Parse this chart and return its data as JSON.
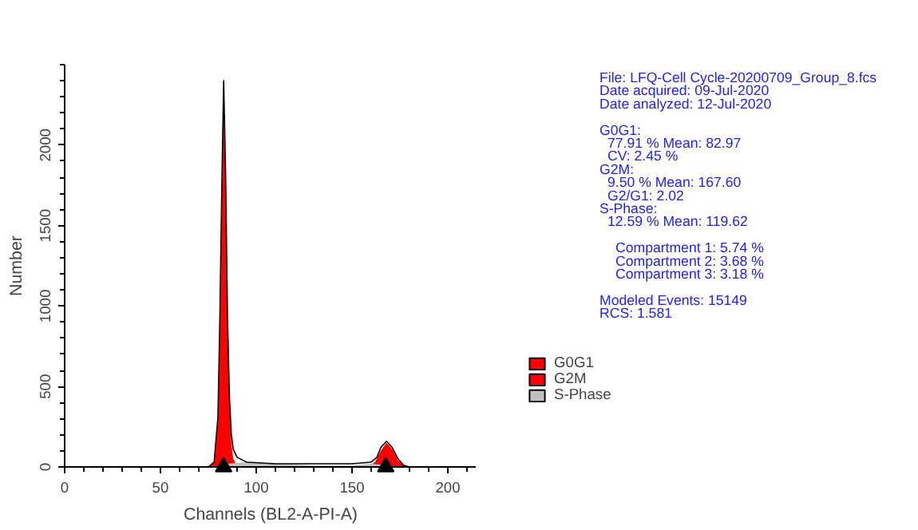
{
  "chart_data": {
    "type": "area",
    "xlabel": "Channels (BL2-A-PI-A)",
    "ylabel": "Number",
    "xlim": [
      0,
      215
    ],
    "ylim": [
      0,
      2500
    ],
    "xticks": [
      0,
      50,
      100,
      150,
      200
    ],
    "yticks": [
      0,
      500,
      1000,
      1500,
      2000
    ],
    "grid": false,
    "legend": "bottom right",
    "series": [
      {
        "name": "G0G1",
        "color": "#ff0000",
        "x": [
          75,
          78,
          80,
          81,
          82,
          83,
          84,
          85,
          86,
          87,
          88,
          90,
          92
        ],
        "values": [
          0,
          30,
          300,
          900,
          1700,
          2380,
          1800,
          900,
          400,
          150,
          50,
          10,
          0
        ]
      },
      {
        "name": "G2M",
        "color": "#ff0000",
        "x": [
          158,
          162,
          165,
          168,
          171,
          174,
          177,
          180
        ],
        "values": [
          0,
          30,
          100,
          150,
          110,
          40,
          10,
          0
        ]
      },
      {
        "name": "S-Phase",
        "color": "#c0c0c0",
        "x": [
          78,
          85,
          95,
          110,
          130,
          150,
          160,
          168,
          175
        ],
        "values": [
          0,
          20,
          30,
          20,
          10,
          10,
          20,
          10,
          0
        ]
      },
      {
        "type": "line",
        "color": "#000000",
        "x": [
          75,
          78,
          80,
          81,
          82,
          83,
          84,
          85,
          86,
          87,
          88,
          90,
          95,
          110,
          130,
          150,
          160,
          163,
          165,
          168,
          171,
          174,
          177,
          180
        ],
        "values": [
          0,
          30,
          310,
          920,
          1720,
          2400,
          1830,
          930,
          440,
          200,
          110,
          60,
          30,
          20,
          20,
          20,
          30,
          60,
          120,
          160,
          120,
          50,
          10,
          0
        ]
      },
      {
        "type": "scatter",
        "marker": "triangle",
        "color": "#000000",
        "x": [
          82.97,
          167.6
        ],
        "values": [
          0,
          0
        ]
      }
    ],
    "annotations": [
      "File: LFQ-Cell Cycle-20200709_Group_8.fcs",
      "Date acquired: 09-Jul-2020",
      "Date analyzed: 12-Jul-2020",
      "G0G1:",
      "  77.91 %     Mean: 82.97",
      "  CV: 2.45 %",
      "G2M:",
      "  9.50 %     Mean: 167.60",
      "  G2/G1: 2.02",
      "S-Phase:",
      "  12.59 %     Mean: 119.62",
      "    Compartment 1:  5.74 %",
      "    Compartment 2:  3.68 %",
      "    Compartment 3:  3.18 %",
      "Modeled Events: 15149",
      "RCS: 1.581"
    ]
  }
}
